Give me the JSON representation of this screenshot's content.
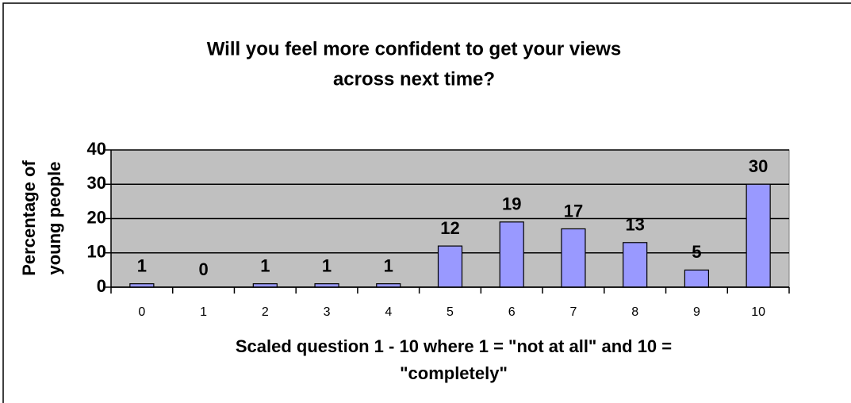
{
  "chart_data": {
    "type": "bar",
    "title": [
      "Will you feel more confident to get your views",
      "across next time?"
    ],
    "x_label": [
      "Scaled question 1 - 10 where 1 = \"not at all\" and 10 =",
      "\"completely\""
    ],
    "y_label": [
      "Percentage of",
      "young people"
    ],
    "categories": [
      "0",
      "1",
      "2",
      "3",
      "4",
      "5",
      "6",
      "7",
      "8",
      "9",
      "10"
    ],
    "values": [
      1,
      0,
      1,
      1,
      1,
      12,
      19,
      17,
      13,
      5,
      30
    ],
    "color": "#9999ff",
    "ylim": [
      0,
      40
    ],
    "yticks": [
      0,
      10,
      20,
      30,
      40
    ],
    "grid": true,
    "data_labels": true
  }
}
